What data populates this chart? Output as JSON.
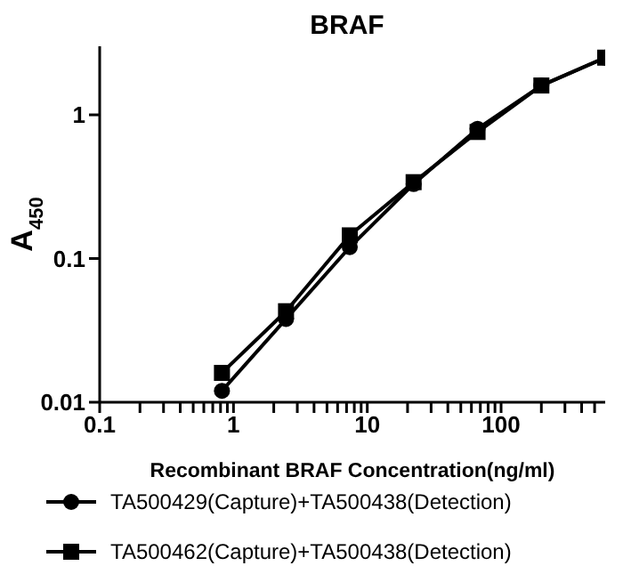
{
  "chart_data": {
    "type": "line",
    "title": "BRAF",
    "xlabel": "Recombinant BRAF  Concentration(ng/ml)",
    "ylabel": "A$_{450}$",
    "log": "xy",
    "x": [
      0.82,
      2.47,
      7.4,
      22.2,
      66.7,
      200,
      600
    ],
    "series": [
      {
        "name": "TA500429(Capture)+TA500438(Detection)",
        "color": "#000000",
        "marker": "circle",
        "values": [
          0.012,
          0.038,
          0.12,
          0.33,
          0.8,
          1.6,
          2.5
        ]
      },
      {
        "name": "TA500462(Capture)+TA500438(Detection)",
        "color": "#000000",
        "marker": "square",
        "values": [
          0.016,
          0.043,
          0.145,
          0.34,
          0.76,
          1.6,
          2.5
        ]
      }
    ],
    "xlim": [
      0.1,
      600
    ],
    "xticks": [
      0.1,
      {
        "value": 0.2,
        "label": null
      },
      {
        "value": 0.3,
        "label": null
      },
      {
        "value": 0.4,
        "label": null
      },
      {
        "value": 0.5,
        "label": null
      },
      {
        "value": 0.6,
        "label": null
      },
      {
        "value": 0.7,
        "label": null
      },
      {
        "value": 0.8,
        "label": null
      },
      {
        "value": 0.9,
        "label": null
      },
      1,
      {
        "value": 2,
        "label": null
      },
      {
        "value": 3,
        "label": null
      },
      {
        "value": 4,
        "label": null
      },
      {
        "value": 5,
        "label": null
      },
      {
        "value": 6,
        "label": null
      },
      {
        "value": 7,
        "label": null
      },
      {
        "value": 8,
        "label": null
      },
      {
        "value": 9,
        "label": null
      },
      10,
      {
        "value": 20,
        "label": null
      },
      {
        "value": 30,
        "label": null
      },
      {
        "value": 40,
        "label": null
      },
      {
        "value": 50,
        "label": null
      },
      {
        "value": 60,
        "label": null
      },
      {
        "value": 70,
        "label": null
      },
      {
        "value": 80,
        "label": null
      },
      {
        "value": 90,
        "label": null
      },
      100,
      {
        "value": 200,
        "label": null
      },
      {
        "value": 300,
        "label": null
      },
      {
        "value": 400,
        "label": null
      },
      {
        "value": 500,
        "label": null
      }
    ],
    "ylim": [
      0.01,
      3
    ],
    "yticks": [
      0.01,
      0.1,
      1
    ],
    "grid": false,
    "legend": "bottom",
    "line_style": "solid"
  }
}
